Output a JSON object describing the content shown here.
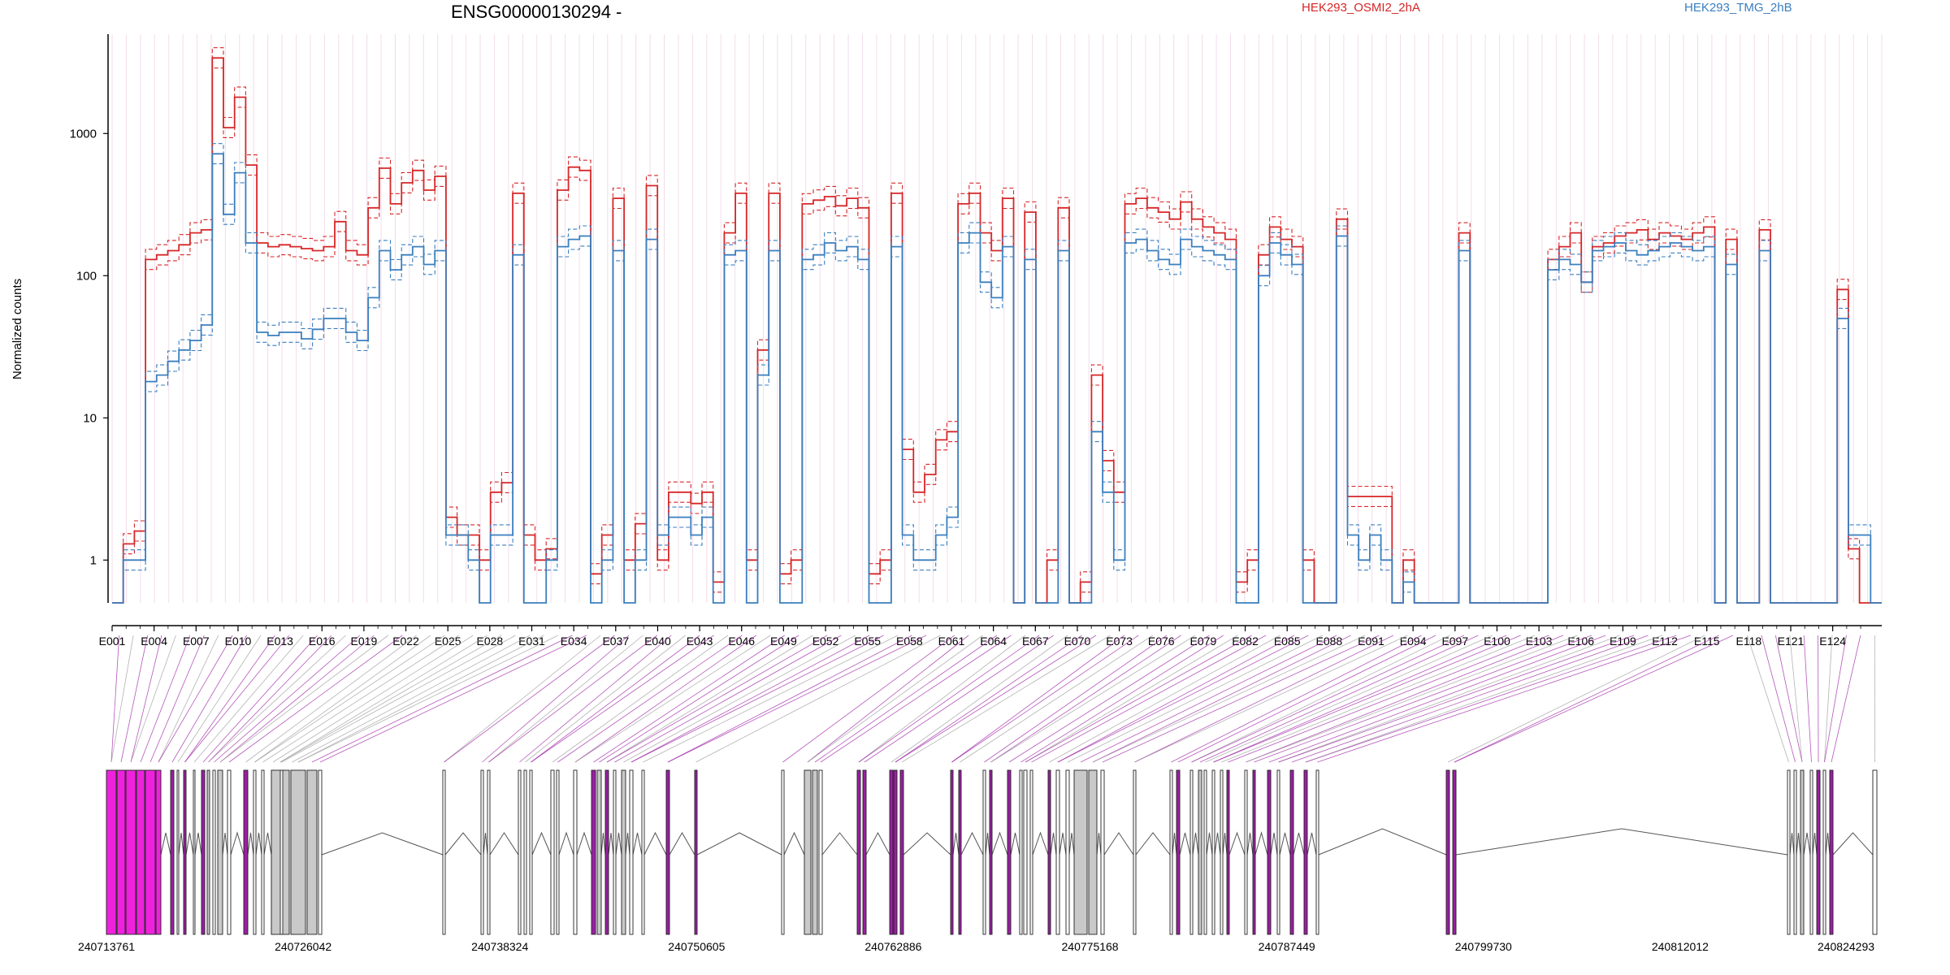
{
  "chart_data": {
    "type": "line",
    "title": "ENSG00000130294 -",
    "ylabel": "Normalized counts",
    "yscale": "log",
    "ylim": [
      0.5,
      5000
    ],
    "y_ticks": [
      {
        "value": 1,
        "label": "1"
      },
      {
        "value": 10,
        "label": "10"
      },
      {
        "value": 100,
        "label": "100"
      },
      {
        "value": 1000,
        "label": "1000"
      }
    ],
    "legend": [
      "HEK293_OSMI2_2hA",
      "HEK293_TMG_2hB"
    ],
    "colors": {
      "osmi": "#d62728",
      "tmg": "#3a7fbf",
      "exon_highlight": "#ee22dd",
      "exon_purple": "#9b1fa3",
      "exon_grey": "#c9c9c9",
      "connector_grey": "#999999",
      "gridline": "#f3dcea"
    },
    "exon_labels": [
      "E001",
      "E004",
      "E007",
      "E010",
      "E013",
      "E016",
      "E019",
      "E022",
      "E025",
      "E028",
      "E031",
      "E034",
      "E037",
      "E040",
      "E043",
      "E046",
      "E049",
      "E052",
      "E055",
      "E058",
      "E061",
      "E064",
      "E067",
      "E070",
      "E073",
      "E076",
      "E079",
      "E082",
      "E085",
      "E088",
      "E091",
      "E094",
      "E097",
      "E100",
      "E103",
      "E106",
      "E109",
      "E112",
      "E115",
      "E118",
      "E121",
      "E124"
    ],
    "genomic_ticks": [
      "240713761",
      "240726042",
      "240738324",
      "240750605",
      "240762886",
      "240775168",
      "240787449",
      "240799730",
      "240812012",
      "240824293"
    ],
    "series": [
      {
        "name": "HEK293_OSMI2_2hA",
        "values": [
          0.5,
          1.3,
          1.6,
          130,
          140,
          150,
          165,
          200,
          210,
          3400,
          1100,
          1800,
          600,
          170,
          160,
          165,
          160,
          155,
          150,
          160,
          240,
          150,
          140,
          300,
          570,
          320,
          450,
          550,
          400,
          500,
          2,
          1.5,
          1.5,
          1,
          3,
          3.5,
          380,
          1.5,
          1,
          1.2,
          400,
          580,
          550,
          0.8,
          1.5,
          350,
          1,
          1.8,
          430,
          1,
          3,
          3,
          2.5,
          3,
          0.7,
          200,
          380,
          1,
          30,
          380,
          0.8,
          1,
          320,
          340,
          360,
          310,
          350,
          300,
          0.8,
          1,
          380,
          6,
          3,
          4,
          7,
          8,
          320,
          380,
          200,
          150,
          350,
          0.5,
          280,
          0.5,
          1,
          300,
          0.5,
          0.7,
          20,
          5,
          3,
          320,
          350,
          300,
          280,
          250,
          330,
          250,
          220,
          200,
          180,
          0.7,
          1,
          140,
          220,
          180,
          160,
          1,
          0.5,
          0.5,
          250,
          2.8,
          2.8,
          2.8,
          2.8,
          0.5,
          1,
          0.5,
          0.5,
          0.5,
          0.5,
          200,
          0.5,
          0.5,
          0.5,
          0.5,
          0.5,
          0.5,
          0.5,
          130,
          160,
          200,
          90,
          160,
          170,
          190,
          200,
          210,
          180,
          200,
          190,
          180,
          200,
          220,
          0.5,
          180,
          0.5,
          0.5,
          210,
          0.5,
          0.5,
          0.5,
          0.5,
          0.5,
          0.5,
          80,
          1.2,
          0.5,
          0.5
        ]
      },
      {
        "name": "HEK293_TMG_2hB",
        "values": [
          0.5,
          1,
          1,
          18,
          20,
          25,
          30,
          35,
          45,
          720,
          270,
          530,
          170,
          40,
          38,
          40,
          40,
          36,
          42,
          50,
          50,
          40,
          35,
          70,
          150,
          110,
          140,
          160,
          120,
          150,
          1.5,
          1.5,
          1,
          0.5,
          1.5,
          1.5,
          140,
          0.5,
          0.5,
          1,
          160,
          180,
          190,
          0.5,
          1,
          150,
          0.5,
          1,
          180,
          1.5,
          2,
          2,
          1.5,
          2,
          0.5,
          140,
          150,
          0.5,
          20,
          150,
          0.5,
          0.5,
          130,
          140,
          170,
          150,
          160,
          130,
          0.5,
          0.5,
          160,
          1.5,
          1,
          1,
          1.5,
          2,
          170,
          200,
          90,
          70,
          160,
          0.5,
          130,
          0.5,
          0.5,
          150,
          0.5,
          0.5,
          8,
          3,
          1,
          170,
          180,
          150,
          130,
          120,
          180,
          160,
          150,
          140,
          130,
          0.5,
          0.5,
          100,
          170,
          140,
          120,
          0.5,
          0.5,
          0.5,
          190,
          1.5,
          1,
          1.5,
          1,
          0.5,
          0.7,
          0.5,
          0.5,
          0.5,
          0.5,
          150,
          0.5,
          0.5,
          0.5,
          0.5,
          0.5,
          0.5,
          0.5,
          110,
          130,
          120,
          90,
          150,
          160,
          170,
          150,
          140,
          150,
          160,
          170,
          160,
          150,
          160,
          0.5,
          120,
          0.5,
          0.5,
          150,
          0.5,
          0.5,
          0.5,
          0.5,
          0.5,
          0.5,
          50,
          1.5,
          1.5,
          0.5
        ]
      }
    ]
  }
}
